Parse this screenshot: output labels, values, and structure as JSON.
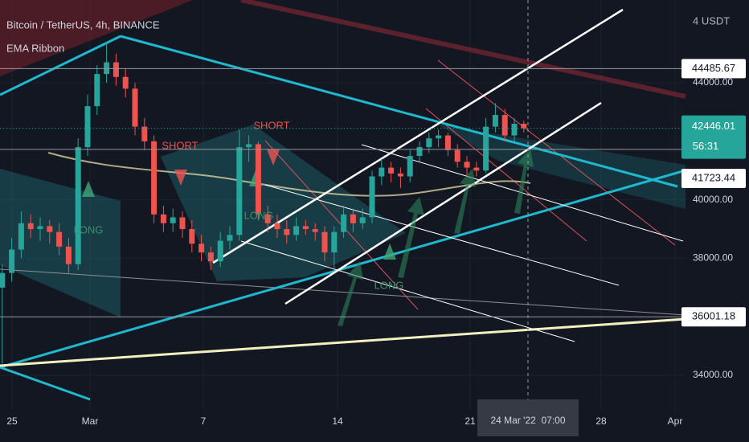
{
  "chart_data": {
    "type": "candlestick",
    "title": "Bitcoin / TetherUS, 4h, BINANCE",
    "indicator": "EMA Ribbon",
    "currency_label": "4 USDT",
    "ylim": [
      32820,
      46830
    ],
    "yticks": [
      {
        "value": 34000,
        "label": "34000.00"
      },
      {
        "value": 38000,
        "label": "38000.00"
      },
      {
        "value": 40000,
        "label": "40000.00"
      },
      {
        "value": 44000,
        "label": "44000.00"
      }
    ],
    "xticks": [
      "25",
      "Mar",
      "7",
      "14",
      "21",
      "28",
      "Apr"
    ],
    "crosshair_time": "24 Mar '22  07:00",
    "up_color": "#26a69a",
    "down_color": "#ef5350",
    "grid": true,
    "ohlc": [
      [
        37000,
        37800,
        34400,
        37500
      ],
      [
        37500,
        38700,
        37200,
        38300
      ],
      [
        38300,
        39600,
        38000,
        39200
      ],
      [
        39200,
        39500,
        38700,
        39000
      ],
      [
        39000,
        39400,
        38600,
        39100
      ],
      [
        39100,
        39300,
        38500,
        38900
      ],
      [
        38900,
        39200,
        38100,
        38400
      ],
      [
        38400,
        38700,
        37500,
        37800
      ],
      [
        37800,
        42100,
        37600,
        41800
      ],
      [
        41800,
        43600,
        41500,
        43200
      ],
      [
        43200,
        44600,
        42900,
        44300
      ],
      [
        44300,
        45400,
        44000,
        44700
      ],
      [
        44700,
        45000,
        43900,
        44200
      ],
      [
        44200,
        44500,
        43500,
        43800
      ],
      [
        43800,
        44000,
        42200,
        42500
      ],
      [
        42500,
        42800,
        41700,
        42000
      ],
      [
        42000,
        42200,
        39200,
        39500
      ],
      [
        39500,
        39800,
        38900,
        39200
      ],
      [
        39200,
        39700,
        38900,
        39400
      ],
      [
        39400,
        39600,
        38700,
        39000
      ],
      [
        39000,
        39300,
        38200,
        38500
      ],
      [
        38500,
        38800,
        37900,
        38200
      ],
      [
        38200,
        38400,
        37600,
        37900
      ],
      [
        37900,
        38900,
        37700,
        38600
      ],
      [
        38600,
        39100,
        38300,
        38800
      ],
      [
        38800,
        42400,
        38600,
        41800
      ],
      [
        41800,
        42200,
        41300,
        41900
      ],
      [
        41900,
        42000,
        39300,
        39500
      ],
      [
        39500,
        39800,
        38900,
        39200
      ],
      [
        39200,
        39500,
        38700,
        39000
      ],
      [
        39000,
        39300,
        38500,
        38800
      ],
      [
        38800,
        39400,
        38600,
        39100
      ],
      [
        39100,
        39300,
        38800,
        39000
      ],
      [
        39000,
        39200,
        38600,
        38900
      ],
      [
        38900,
        39100,
        37900,
        38200
      ],
      [
        38200,
        39100,
        37600,
        38900
      ],
      [
        38900,
        39800,
        38700,
        39500
      ],
      [
        39500,
        39700,
        38900,
        39200
      ],
      [
        39200,
        39700,
        39000,
        39400
      ],
      [
        39400,
        41000,
        39200,
        40800
      ],
      [
        40800,
        41400,
        40500,
        41100
      ],
      [
        41100,
        41300,
        40600,
        40900
      ],
      [
        40900,
        41100,
        40400,
        40800
      ],
      [
        40800,
        41700,
        40600,
        41500
      ],
      [
        41500,
        42000,
        41300,
        41800
      ],
      [
        41800,
        42300,
        41600,
        42100
      ],
      [
        42100,
        42400,
        41800,
        42200
      ],
      [
        42200,
        42300,
        41500,
        41700
      ],
      [
        41700,
        41900,
        41100,
        41300
      ],
      [
        41300,
        41500,
        40800,
        41100
      ],
      [
        41100,
        41300,
        40800,
        41000
      ],
      [
        41000,
        42800,
        40900,
        42500
      ],
      [
        42500,
        43300,
        42300,
        42900
      ],
      [
        42900,
        43100,
        42000,
        42200
      ],
      [
        42200,
        42800,
        42000,
        42600
      ],
      [
        42600,
        42700,
        42300,
        42446.01
      ]
    ],
    "last_price": 42446.01,
    "countdown": "56:31",
    "price_lines": [
      44485.67,
      41723.44,
      36001.18
    ],
    "annotations": [
      {
        "text": "SHORT",
        "color": "#ef5350"
      },
      {
        "text": "SHORT",
        "color": "#ef5350"
      },
      {
        "text": "LONG",
        "color": "#3f8f6f"
      },
      {
        "text": "LONG",
        "color": "#3f8f6f"
      },
      {
        "text": "LONG",
        "color": "#3f8f6f"
      }
    ]
  }
}
